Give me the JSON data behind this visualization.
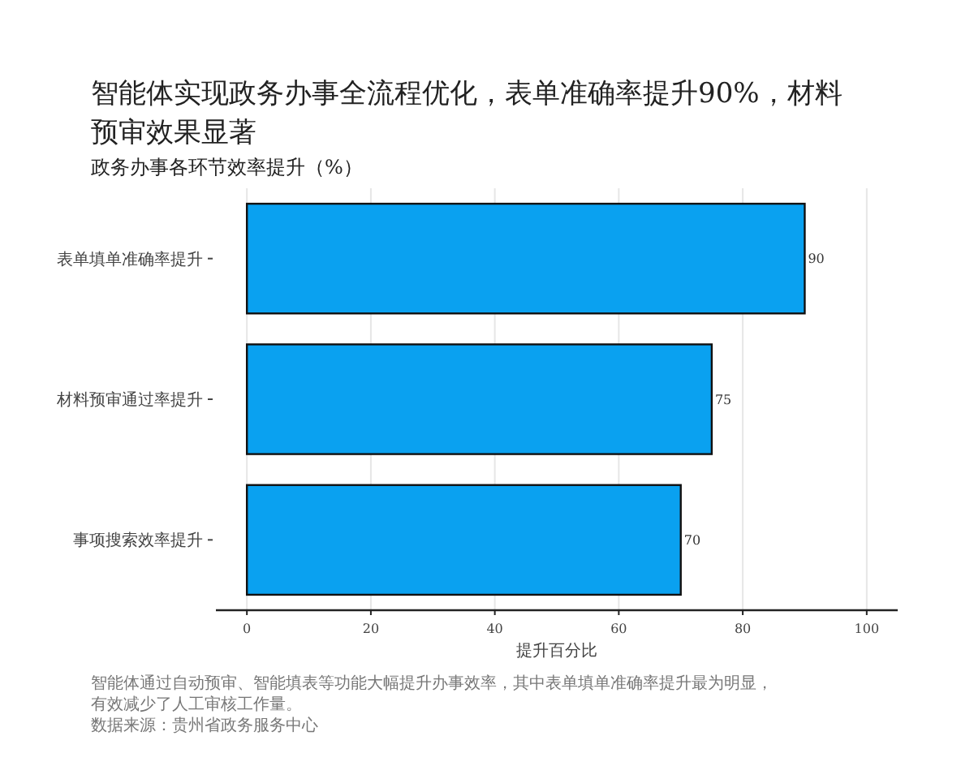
{
  "chart_data": {
    "type": "bar",
    "orientation": "horizontal",
    "title": "智能体实现政务办事全流程优化，表单准确率提升90%，材料预审效果显著",
    "subtitle": "政务办事各环节效率提升（%）",
    "xlabel": "提升百分比",
    "categories": [
      "表单填单准确率提升",
      "材料预审通过率提升",
      "事项搜索效率提升"
    ],
    "values": [
      90,
      75,
      70
    ],
    "color": "#0aa1f0",
    "data_labels": true,
    "xlim": [
      -5,
      105
    ],
    "xticks": [
      0,
      20,
      40,
      60,
      80,
      100
    ],
    "grid": "x",
    "annotations": [
      "智能体通过自动预审、智能填表等功能大幅提升办事效率，其中表单填单准确率提升最为明显，有效减少了人工审核工作量。",
      "数据来源：贵州省政务服务中心"
    ]
  }
}
